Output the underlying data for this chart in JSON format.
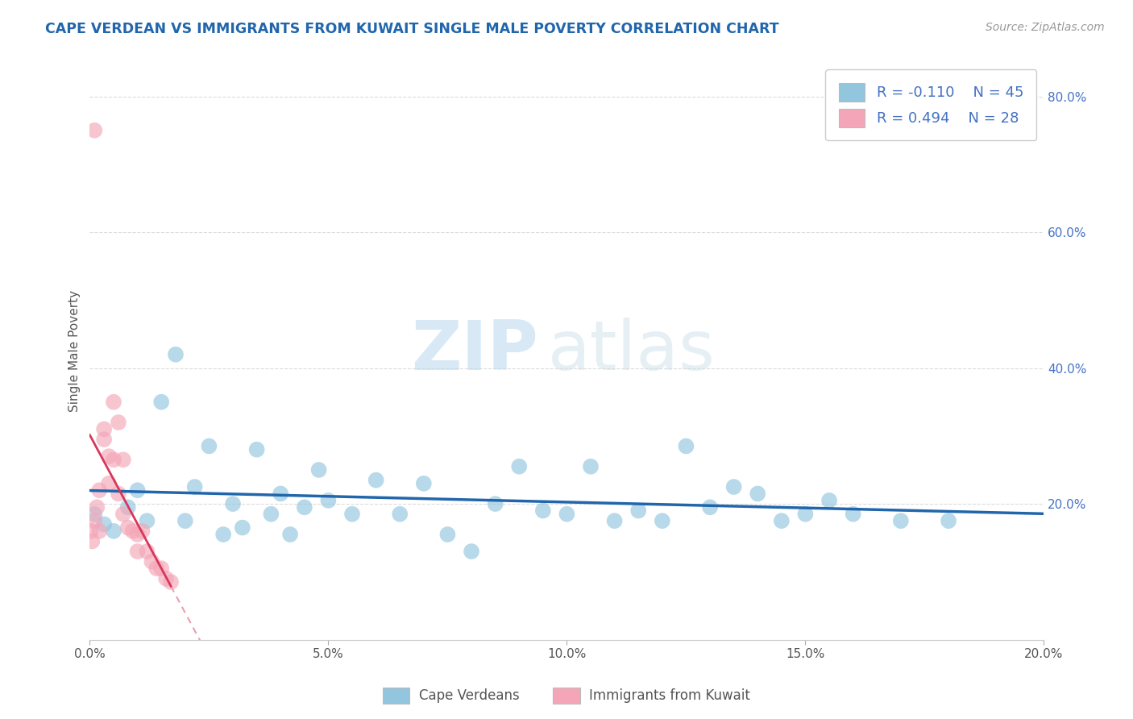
{
  "title": "CAPE VERDEAN VS IMMIGRANTS FROM KUWAIT SINGLE MALE POVERTY CORRELATION CHART",
  "source": "Source: ZipAtlas.com",
  "ylabel": "Single Male Poverty",
  "xlim": [
    0.0,
    0.2
  ],
  "ylim": [
    0.0,
    0.85
  ],
  "xtick_vals": [
    0.0,
    0.05,
    0.1,
    0.15,
    0.2
  ],
  "xtick_labels": [
    "0.0%",
    "5.0%",
    "10.0%",
    "15.0%",
    "20.0%"
  ],
  "ytick_vals": [
    0.2,
    0.4,
    0.6,
    0.8
  ],
  "ytick_labels": [
    "20.0%",
    "40.0%",
    "60.0%",
    "80.0%"
  ],
  "blue_color": "#92c5de",
  "pink_color": "#f4a6b8",
  "blue_line_color": "#2166ac",
  "pink_line_color": "#d6375a",
  "pink_dash_color": "#e8a0b0",
  "legend_blue_r": "-0.110",
  "legend_blue_n": "45",
  "legend_pink_r": "0.494",
  "legend_pink_n": "28",
  "legend_label_blue": "Cape Verdeans",
  "legend_label_pink": "Immigrants from Kuwait",
  "watermark_zip": "ZIP",
  "watermark_atlas": "atlas",
  "grid_color": "#cccccc",
  "title_color": "#2166ac",
  "source_color": "#999999",
  "ytick_color": "#4472c4",
  "blue_x": [
    0.001,
    0.003,
    0.005,
    0.008,
    0.01,
    0.012,
    0.015,
    0.018,
    0.02,
    0.022,
    0.025,
    0.028,
    0.03,
    0.032,
    0.035,
    0.038,
    0.04,
    0.042,
    0.045,
    0.048,
    0.05,
    0.055,
    0.06,
    0.065,
    0.07,
    0.075,
    0.08,
    0.085,
    0.09,
    0.095,
    0.1,
    0.105,
    0.11,
    0.115,
    0.12,
    0.125,
    0.13,
    0.135,
    0.14,
    0.145,
    0.15,
    0.155,
    0.16,
    0.17,
    0.18
  ],
  "blue_y": [
    0.185,
    0.17,
    0.16,
    0.195,
    0.22,
    0.175,
    0.35,
    0.42,
    0.175,
    0.225,
    0.285,
    0.155,
    0.2,
    0.165,
    0.28,
    0.185,
    0.215,
    0.155,
    0.195,
    0.25,
    0.205,
    0.185,
    0.235,
    0.185,
    0.23,
    0.155,
    0.13,
    0.2,
    0.255,
    0.19,
    0.185,
    0.255,
    0.175,
    0.19,
    0.175,
    0.285,
    0.195,
    0.225,
    0.215,
    0.175,
    0.185,
    0.205,
    0.185,
    0.175,
    0.175
  ],
  "pink_x": [
    0.0002,
    0.0005,
    0.001,
    0.001,
    0.0015,
    0.002,
    0.002,
    0.003,
    0.003,
    0.004,
    0.004,
    0.005,
    0.005,
    0.006,
    0.006,
    0.007,
    0.007,
    0.008,
    0.009,
    0.01,
    0.01,
    0.011,
    0.012,
    0.013,
    0.014,
    0.015,
    0.016,
    0.017
  ],
  "pink_y": [
    0.16,
    0.145,
    0.75,
    0.175,
    0.195,
    0.22,
    0.16,
    0.295,
    0.31,
    0.27,
    0.23,
    0.35,
    0.265,
    0.32,
    0.215,
    0.265,
    0.185,
    0.165,
    0.16,
    0.13,
    0.155,
    0.16,
    0.13,
    0.115,
    0.105,
    0.105,
    0.09,
    0.085
  ]
}
